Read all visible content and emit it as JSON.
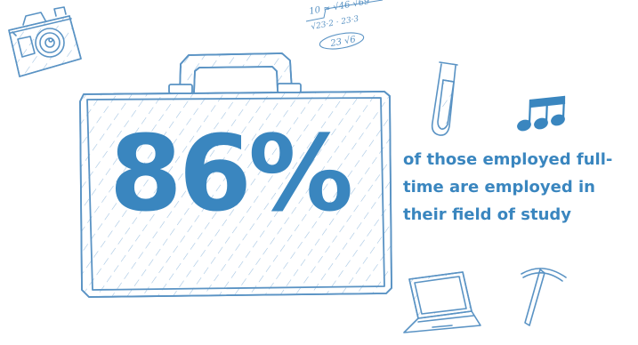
{
  "statistic": {
    "value": "86%",
    "caption": "of those employed full-\ntime are employed in\ntheir field of study"
  },
  "math_doodle": {
    "line1": "10 ≈ √46 √69",
    "line2": "√23·2 · 23·3",
    "line3": "23 √6"
  },
  "colors": {
    "accent": "#3a86bf",
    "stroke": "#5a93c4",
    "background": "#ffffff"
  },
  "icons": [
    "camera-icon",
    "briefcase-icon",
    "test-tube-icon",
    "music-notes-icon",
    "laptop-icon",
    "pickaxe-icon"
  ]
}
